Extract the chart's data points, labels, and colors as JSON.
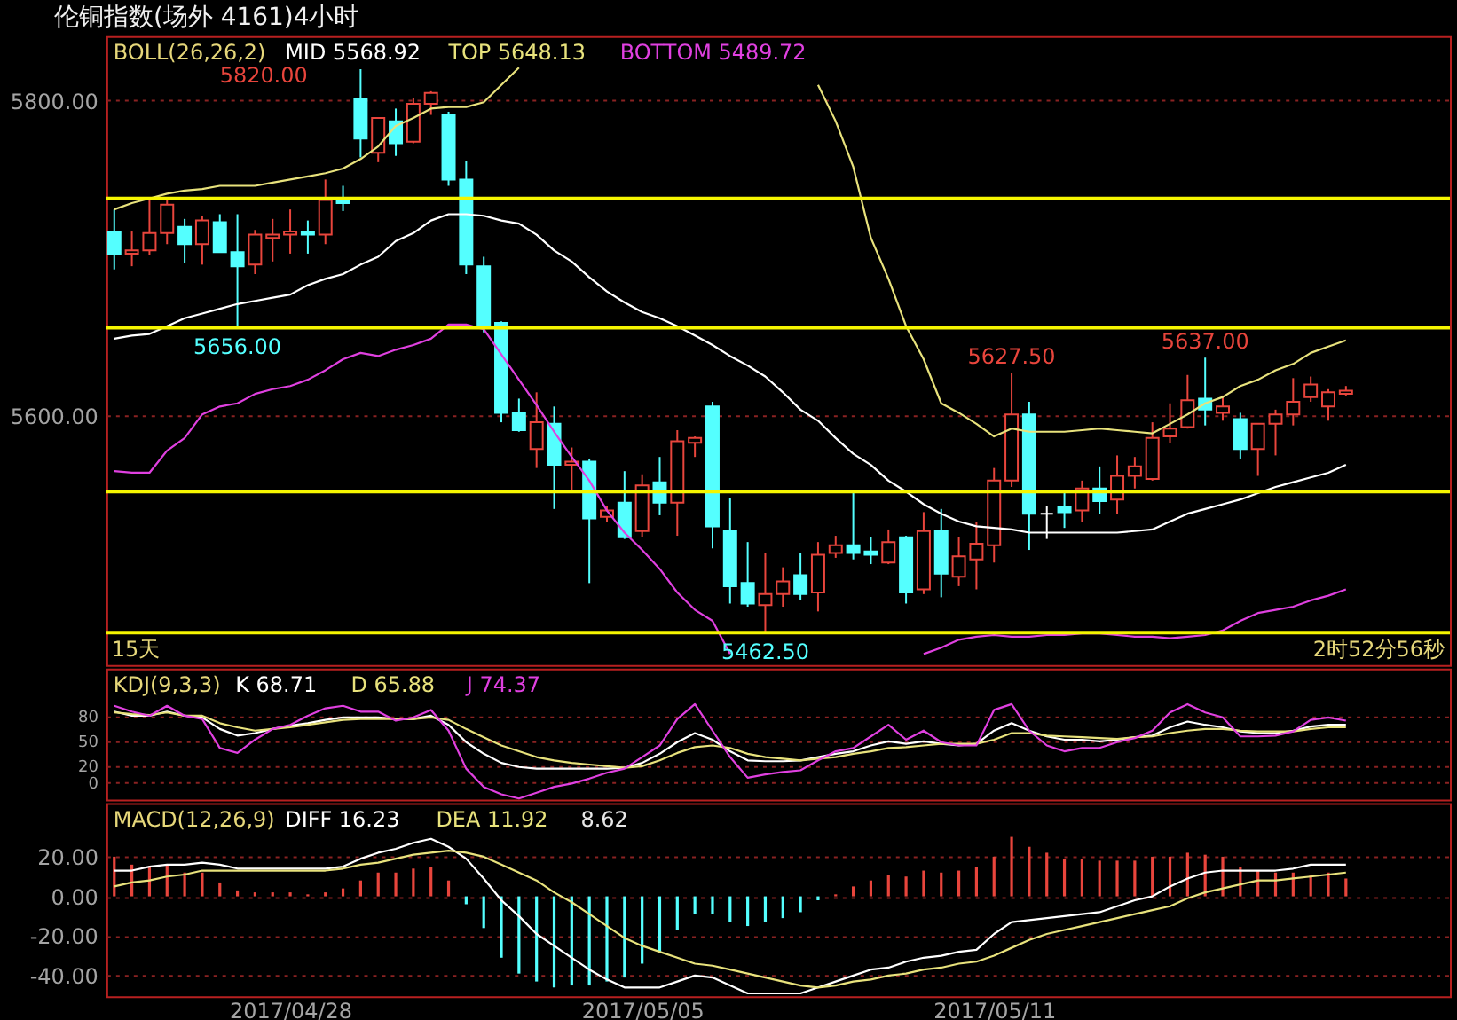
{
  "chart_data": [
    {
      "type": "candlestick",
      "title": "伦铜指数(场外 4161)4小时",
      "legend_title": "BOLL(26,26,2)",
      "legend": "top left",
      "tick_labels": "y",
      "grid": "y",
      "categories": [
        null,
        null,
        null,
        null,
        null,
        null,
        null,
        null,
        null,
        null,
        "2017/04/28",
        null,
        null,
        null,
        null,
        null,
        null,
        null,
        null,
        null,
        null,
        null,
        null,
        null,
        null,
        null,
        null,
        null,
        null,
        null,
        "2017/05/05",
        null,
        null,
        null,
        null,
        null,
        null,
        null,
        null,
        null,
        null,
        null,
        null,
        null,
        null,
        null,
        null,
        null,
        null,
        null,
        "2017/05/11",
        null,
        null,
        null,
        null,
        null,
        null,
        null,
        null,
        null,
        null,
        null,
        null,
        null,
        null,
        null,
        null,
        null,
        null,
        null,
        null
      ],
      "ohlc": [
        [
          5717,
          5731,
          5693,
          5703
        ],
        [
          5703,
          5717,
          5695,
          5705
        ],
        [
          5705,
          5737,
          5702,
          5716
        ],
        [
          5716,
          5737,
          5709,
          5734
        ],
        [
          5720,
          5725,
          5697,
          5709
        ],
        [
          5709,
          5727,
          5696,
          5724
        ],
        [
          5723,
          5728,
          5704,
          5704
        ],
        [
          5704,
          5728,
          5656,
          5695
        ],
        [
          5696,
          5718,
          5690,
          5715
        ],
        [
          5713,
          5725,
          5698,
          5715
        ],
        [
          5715,
          5731,
          5703,
          5717
        ],
        [
          5717,
          5724,
          5703,
          5715
        ],
        [
          5715,
          5750,
          5709,
          5737
        ],
        [
          5738,
          5746,
          5730,
          5735
        ],
        [
          5801,
          5820,
          5764,
          5776
        ],
        [
          5767,
          5789,
          5761,
          5789
        ],
        [
          5787,
          5795,
          5765,
          5773
        ],
        [
          5774,
          5802,
          5773,
          5798
        ],
        [
          5798,
          5806,
          5791,
          5805
        ],
        [
          5791,
          5793,
          5746,
          5750
        ],
        [
          5750,
          5762,
          5690,
          5696
        ],
        [
          5695,
          5701,
          5653,
          5657
        ],
        [
          5659,
          5660,
          5596,
          5602
        ],
        [
          5602,
          5611,
          5590,
          5591
        ],
        [
          5579,
          5615,
          5567,
          5596
        ],
        [
          5595,
          5606,
          5541,
          5569
        ],
        [
          5569,
          5580,
          5552,
          5571
        ],
        [
          5571,
          5573,
          5494,
          5535
        ],
        [
          5536,
          5543,
          5533,
          5540
        ],
        [
          5545,
          5565,
          5522,
          5523
        ],
        [
          5527,
          5563,
          5523,
          5556
        ],
        [
          5558,
          5574,
          5537,
          5545
        ],
        [
          5545,
          5591,
          5524,
          5584
        ],
        [
          5583,
          5587,
          5574,
          5586
        ],
        [
          5606,
          5609,
          5516,
          5530
        ],
        [
          5527,
          5548,
          5481,
          5492
        ],
        [
          5494,
          5520,
          5479,
          5481
        ],
        [
          5480,
          5513,
          5462.5,
          5487
        ],
        [
          5487,
          5504,
          5479,
          5495
        ],
        [
          5499,
          5513,
          5483,
          5487
        ],
        [
          5488,
          5520,
          5476,
          5512
        ],
        [
          5513,
          5524,
          5510,
          5518
        ],
        [
          5518,
          5553,
          5509,
          5513
        ],
        [
          5514,
          5523,
          5506,
          5512
        ],
        [
          5507,
          5528,
          5506,
          5520
        ],
        [
          5523,
          5524,
          5481,
          5488
        ],
        [
          5490,
          5539,
          5487,
          5527
        ],
        [
          5527,
          5541,
          5485,
          5500
        ],
        [
          5498,
          5523,
          5492,
          5511
        ],
        [
          5509,
          5533,
          5490,
          5519
        ],
        [
          5518,
          5567,
          5507,
          5559
        ],
        [
          5559,
          5627.5,
          5555,
          5601
        ],
        [
          5601,
          5609,
          5515,
          5538
        ],
        [
          5538,
          5543,
          5522,
          5538
        ],
        [
          5542,
          5552,
          5529,
          5539
        ],
        [
          5540,
          5559,
          5533,
          5554
        ],
        [
          5554,
          5568,
          5538,
          5546
        ],
        [
          5547,
          5575,
          5538,
          5562
        ],
        [
          5562,
          5574,
          5554,
          5568
        ],
        [
          5560,
          5596,
          5559,
          5586
        ],
        [
          5587,
          5608,
          5583,
          5592
        ],
        [
          5593,
          5626,
          5592,
          5610
        ],
        [
          5611,
          5637,
          5594,
          5604
        ],
        [
          5602,
          5613,
          5597,
          5606
        ],
        [
          5598,
          5602,
          5573,
          5579
        ],
        [
          5579,
          5595,
          5562,
          5595
        ],
        [
          5595,
          5604,
          5575,
          5601
        ],
        [
          5601,
          5624,
          5594,
          5609
        ],
        [
          5612,
          5625,
          5609,
          5620
        ],
        [
          5606,
          5617,
          5597,
          5615
        ],
        [
          5614,
          5619,
          5613,
          5616
        ]
      ],
      "colors": [
        "#54ffff",
        "#e8453c",
        "#e8453c",
        "#e8453c",
        "#54ffff",
        "#e8453c",
        "#54ffff",
        "#54ffff",
        "#e8453c",
        "#e8453c",
        "#e8453c",
        "#54ffff",
        "#e8453c",
        "#54ffff",
        "#54ffff",
        "#e8453c",
        "#54ffff",
        "#e8453c",
        "#e8453c",
        "#54ffff",
        "#54ffff",
        "#54ffff",
        "#54ffff",
        "#54ffff",
        "#e8453c",
        "#54ffff",
        "#e8453c",
        "#54ffff",
        "#e8453c",
        "#54ffff",
        "#e8453c",
        "#54ffff",
        "#e8453c",
        "#e8453c",
        "#54ffff",
        "#54ffff",
        "#54ffff",
        "#e8453c",
        "#e8453c",
        "#54ffff",
        "#e8453c",
        "#e8453c",
        "#54ffff",
        "#54ffff",
        "#e8453c",
        "#54ffff",
        "#e8453c",
        "#54ffff",
        "#e8453c",
        "#e8453c",
        "#e8453c",
        "#e8453c",
        "#54ffff",
        "#ffffff",
        "#54ffff",
        "#e8453c",
        "#54ffff",
        "#e8453c",
        "#e8453c",
        "#e8453c",
        "#e8453c",
        "#e8453c",
        "#54ffff",
        "#e8453c",
        "#54ffff",
        "#e8453c",
        "#e8453c",
        "#e8453c",
        "#e8453c",
        "#e8453c",
        "#e8453c"
      ],
      "series": [
        {
          "name": "MID 5568.92",
          "type": "line",
          "color": "#ffffff",
          "values": [
            5649,
            5651,
            5652,
            5657,
            5662,
            5665,
            5668,
            5671,
            5673,
            5675,
            5677,
            5683,
            5687,
            5690,
            5696,
            5701,
            5711,
            5716,
            5724,
            5728,
            5728,
            5727,
            5724,
            5722,
            5715,
            5705,
            5698,
            5688,
            5679,
            5672,
            5666,
            5662,
            5657,
            5651,
            5645,
            5638,
            5632,
            5625,
            5615,
            5604,
            5597,
            5586,
            5576,
            5569,
            5559,
            5552,
            5544,
            5538,
            5533,
            5530,
            5529,
            5528,
            5526,
            5526,
            5526,
            5526,
            5526,
            5526,
            5527,
            5528,
            5533,
            5538,
            5541,
            5544,
            5547,
            5551,
            5555,
            5558,
            5561,
            5564,
            5569
          ]
        },
        {
          "name": "TOP 5648.13",
          "type": "line",
          "color": "#e8e27c",
          "values": [
            5731,
            5735,
            5738,
            5741,
            5743,
            5744,
            5746,
            5746,
            5746,
            5748,
            5750,
            5752,
            5754,
            5757,
            5763,
            5771,
            5784,
            5789,
            5795,
            5796,
            5796,
            5799,
            5810,
            5821,
            null,
            null,
            null,
            null,
            null,
            null,
            null,
            null,
            null,
            null,
            null,
            null,
            null,
            null,
            null,
            null,
            5810,
            5787,
            5758,
            5713,
            5687,
            5657,
            5636,
            5608,
            5602,
            5595,
            5587,
            5592,
            5590,
            5590,
            5590,
            5591,
            5592,
            5591,
            5590,
            5589,
            5595,
            5601,
            5608,
            5612,
            5619,
            5623,
            5629,
            5633,
            5640,
            5644,
            5648
          ]
        },
        {
          "name": "BOTTOM 5489.72",
          "type": "line",
          "color": "#e040e0",
          "values": [
            5565,
            5564,
            5564,
            5578,
            5586,
            5601,
            5606,
            5608,
            5614,
            5617,
            5619,
            5623,
            5629,
            5636,
            5640,
            5638,
            5642,
            5645,
            5649,
            5658,
            5658,
            5655,
            5639,
            5623,
            5607,
            5590,
            5574,
            5559,
            5540,
            5526,
            5515,
            5503,
            5488,
            5477,
            5470,
            5449,
            null,
            null,
            null,
            null,
            null,
            null,
            null,
            null,
            null,
            null,
            5449,
            5453,
            5458,
            5460,
            5461,
            5460,
            5460,
            5461,
            5461,
            5462,
            5462,
            5461,
            5460,
            5460,
            5459,
            5460,
            5461,
            5464,
            5470,
            5475,
            5477,
            5479,
            5483,
            5486,
            5490
          ]
        }
      ],
      "ylim": [
        5442,
        5841
      ],
      "yticks": [
        {
          "value": 5800,
          "label": "5800.00"
        },
        {
          "value": 5600,
          "label": "5600.00"
        }
      ],
      "ref_lines": [
        {
          "axis": "y",
          "value": 5738,
          "color": "#f5f500"
        },
        {
          "axis": "y",
          "value": 5656,
          "color": "#f5f500"
        },
        {
          "axis": "y",
          "value": 5552,
          "color": "#f5f500"
        },
        {
          "axis": "y",
          "value": 5462.5,
          "color": "#f5f500"
        }
      ],
      "annotations": [
        {
          "text": "5656.00",
          "y": 5656
        },
        {
          "text": "5627.50",
          "y": 5627.5
        },
        {
          "text": "5637.00",
          "y": 5637
        },
        {
          "text": "5462.50",
          "y": 5462.5
        },
        "5820.00",
        "15天",
        "2时52分56秒"
      ]
    },
    {
      "type": "line",
      "legend_title": "KDJ(9,3,3)",
      "legend": "top left",
      "tick_labels": "y",
      "grid": "y",
      "categories": [
        null,
        null,
        null,
        null,
        null,
        null,
        null,
        null,
        null,
        null,
        "2017/04/28",
        null,
        null,
        null,
        null,
        null,
        null,
        null,
        null,
        null,
        null,
        null,
        null,
        null,
        null,
        null,
        null,
        null,
        null,
        null,
        "2017/05/05",
        null,
        null,
        null,
        null,
        null,
        null,
        null,
        null,
        null,
        null,
        null,
        null,
        null,
        null,
        null,
        null,
        null,
        null,
        null,
        "2017/05/11",
        null,
        null,
        null,
        null,
        null,
        null,
        null,
        null,
        null,
        null,
        null,
        null,
        null,
        null,
        null,
        null,
        null,
        null,
        null,
        null
      ],
      "series": [
        {
          "name": "K 68.71",
          "color": "#ffffff",
          "values": [
            85,
            80,
            80,
            85,
            80,
            78,
            64,
            56,
            59,
            64,
            68,
            71,
            75,
            78,
            78,
            78,
            76,
            76,
            80,
            69,
            48,
            34,
            23,
            18,
            16,
            16,
            16,
            16,
            16,
            17,
            23,
            34,
            48,
            59,
            51,
            37,
            26,
            25,
            25,
            26,
            30,
            34,
            37,
            44,
            49,
            46,
            49,
            46,
            44,
            46,
            62,
            71,
            62,
            55,
            51,
            51,
            49,
            51,
            54,
            56,
            66,
            73,
            69,
            66,
            61,
            59,
            59,
            62,
            67,
            69,
            69
          ]
        },
        {
          "name": "D 65.88",
          "color": "#e8e27c",
          "values": [
            84,
            82,
            81,
            84,
            80,
            80,
            71,
            66,
            62,
            64,
            66,
            69,
            72,
            75,
            76,
            76,
            76,
            76,
            78,
            75,
            64,
            54,
            44,
            37,
            30,
            26,
            23,
            21,
            19,
            17,
            19,
            26,
            35,
            42,
            44,
            41,
            34,
            30,
            28,
            26,
            28,
            30,
            34,
            37,
            41,
            42,
            44,
            46,
            46,
            46,
            51,
            59,
            59,
            56,
            55,
            54,
            53,
            52,
            54,
            55,
            59,
            62,
            64,
            64,
            62,
            61,
            61,
            61,
            64,
            66,
            66
          ]
        },
        {
          "name": "J 74.37",
          "color": "#e040e0",
          "values": [
            92,
            85,
            80,
            92,
            80,
            76,
            41,
            35,
            51,
            64,
            69,
            80,
            89,
            92,
            85,
            85,
            74,
            78,
            87,
            62,
            16,
            -6,
            -15,
            -20,
            -13,
            -6,
            -2,
            4,
            11,
            16,
            30,
            44,
            76,
            94,
            62,
            30,
            5,
            9,
            12,
            14,
            26,
            37,
            41,
            55,
            69,
            51,
            62,
            48,
            44,
            44,
            87,
            94,
            62,
            44,
            37,
            41,
            41,
            48,
            53,
            62,
            84,
            94,
            84,
            78,
            55,
            55,
            56,
            61,
            75,
            78,
            74
          ]
        }
      ],
      "ylim": [
        -21.5,
        137
      ],
      "yticks": [
        80,
        50,
        20,
        0
      ]
    },
    {
      "type": "line",
      "legend_title": "MACD(12,26,9)",
      "legend": "top left",
      "grid": "y",
      "categories": [
        null,
        null,
        null,
        null,
        null,
        null,
        null,
        null,
        null,
        null,
        "2017/04/28",
        null,
        null,
        null,
        null,
        null,
        null,
        null,
        null,
        null,
        null,
        null,
        null,
        null,
        null,
        null,
        null,
        null,
        null,
        null,
        "2017/05/05",
        null,
        null,
        null,
        null,
        null,
        null,
        null,
        null,
        null,
        null,
        null,
        null,
        null,
        null,
        null,
        null,
        null,
        null,
        null,
        "2017/05/11",
        null,
        null,
        null,
        null,
        null,
        null,
        null,
        null,
        null,
        null,
        null,
        null,
        null,
        null,
        null,
        null,
        null,
        null,
        null,
        null
      ],
      "series": [
        {
          "type": "bar",
          "values": [
            20,
            16,
            15,
            16,
            12,
            12,
            7,
            3,
            2,
            2,
            2,
            1,
            2,
            4,
            8,
            12,
            12,
            14,
            15,
            8,
            -4,
            -16,
            -31,
            -39,
            -43,
            -46,
            -45,
            -45,
            -43,
            -41,
            -34,
            -28,
            -17,
            -9,
            -9,
            -13,
            -15,
            -13,
            -11,
            -8,
            -2,
            1,
            5,
            8,
            11,
            10,
            13,
            12,
            13,
            15,
            20,
            30,
            25,
            22,
            19,
            19,
            18,
            18,
            18,
            20,
            20,
            22,
            21,
            20,
            15,
            13,
            12,
            12,
            11,
            12,
            9
          ],
          "colors": [
            "#e8453c",
            "#e8453c",
            "#e8453c",
            "#e8453c",
            "#e8453c",
            "#e8453c",
            "#e8453c",
            "#e8453c",
            "#e8453c",
            "#e8453c",
            "#e8453c",
            "#e8453c",
            "#e8453c",
            "#e8453c",
            "#e8453c",
            "#e8453c",
            "#e8453c",
            "#e8453c",
            "#e8453c",
            "#e8453c",
            "#54ffff",
            "#54ffff",
            "#54ffff",
            "#54ffff",
            "#54ffff",
            "#54ffff",
            "#54ffff",
            "#54ffff",
            "#54ffff",
            "#54ffff",
            "#54ffff",
            "#54ffff",
            "#54ffff",
            "#54ffff",
            "#54ffff",
            "#54ffff",
            "#54ffff",
            "#54ffff",
            "#54ffff",
            "#54ffff",
            "#54ffff",
            "#e8453c",
            "#e8453c",
            "#e8453c",
            "#e8453c",
            "#e8453c",
            "#e8453c",
            "#e8453c",
            "#e8453c",
            "#e8453c",
            "#e8453c",
            "#e8453c",
            "#e8453c",
            "#e8453c",
            "#e8453c",
            "#e8453c",
            "#e8453c",
            "#e8453c",
            "#e8453c",
            "#e8453c",
            "#e8453c",
            "#e8453c",
            "#e8453c",
            "#e8453c",
            "#e8453c",
            "#e8453c",
            "#e8453c",
            "#e8453c",
            "#e8453c",
            "#e8453c",
            "#e8453c"
          ]
        },
        {
          "name": "DIFF 16.23",
          "color": "#ffffff",
          "values": [
            13,
            13,
            15,
            16,
            16,
            17,
            16,
            14,
            14,
            14,
            14,
            14,
            14,
            15,
            19,
            22,
            24,
            27,
            29,
            25,
            19,
            9,
            -2,
            -10,
            -19,
            -25,
            -31,
            -37,
            -42,
            -46,
            -46,
            -46,
            -43,
            -40,
            -41,
            -45,
            -49,
            -49,
            -49,
            -49,
            -46,
            -43,
            -40,
            -37,
            -36,
            -33,
            -31,
            -30,
            -28,
            -27,
            -19,
            -13,
            -12,
            -11,
            -10,
            -9,
            -8,
            -5,
            -2,
            0,
            5,
            9,
            12,
            13,
            13,
            13,
            13,
            14,
            16,
            16,
            16
          ]
        },
        {
          "name": "DEA 11.92",
          "color": "#e8e27c",
          "values": [
            5,
            7,
            8,
            10,
            11,
            13,
            13,
            13,
            13,
            13,
            13,
            13,
            13,
            14,
            16,
            17,
            19,
            21,
            22,
            23,
            22,
            20,
            16,
            12,
            8,
            2,
            -3,
            -9,
            -15,
            -21,
            -25,
            -28,
            -31,
            -34,
            -35,
            -37,
            -39,
            -41,
            -43,
            -45,
            -46,
            -45,
            -43,
            -42,
            -40,
            -39,
            -37,
            -36,
            -34,
            -33,
            -30,
            -26,
            -22,
            -19,
            -17,
            -15,
            -13,
            -11,
            -9,
            -7,
            -5,
            -1,
            2,
            4,
            6,
            8,
            8,
            9,
            10,
            11,
            12
          ]
        }
      ],
      "ylim": [
        -50.5,
        47
      ],
      "yticks": [
        {
          "value": 20,
          "label": "20.00"
        },
        {
          "value": 0,
          "label": "0.00"
        },
        {
          "value": -20,
          "label": "-20.00"
        },
        {
          "value": -40,
          "label": "-40.00"
        }
      ],
      "annotations": [
        "8.62"
      ]
    }
  ]
}
